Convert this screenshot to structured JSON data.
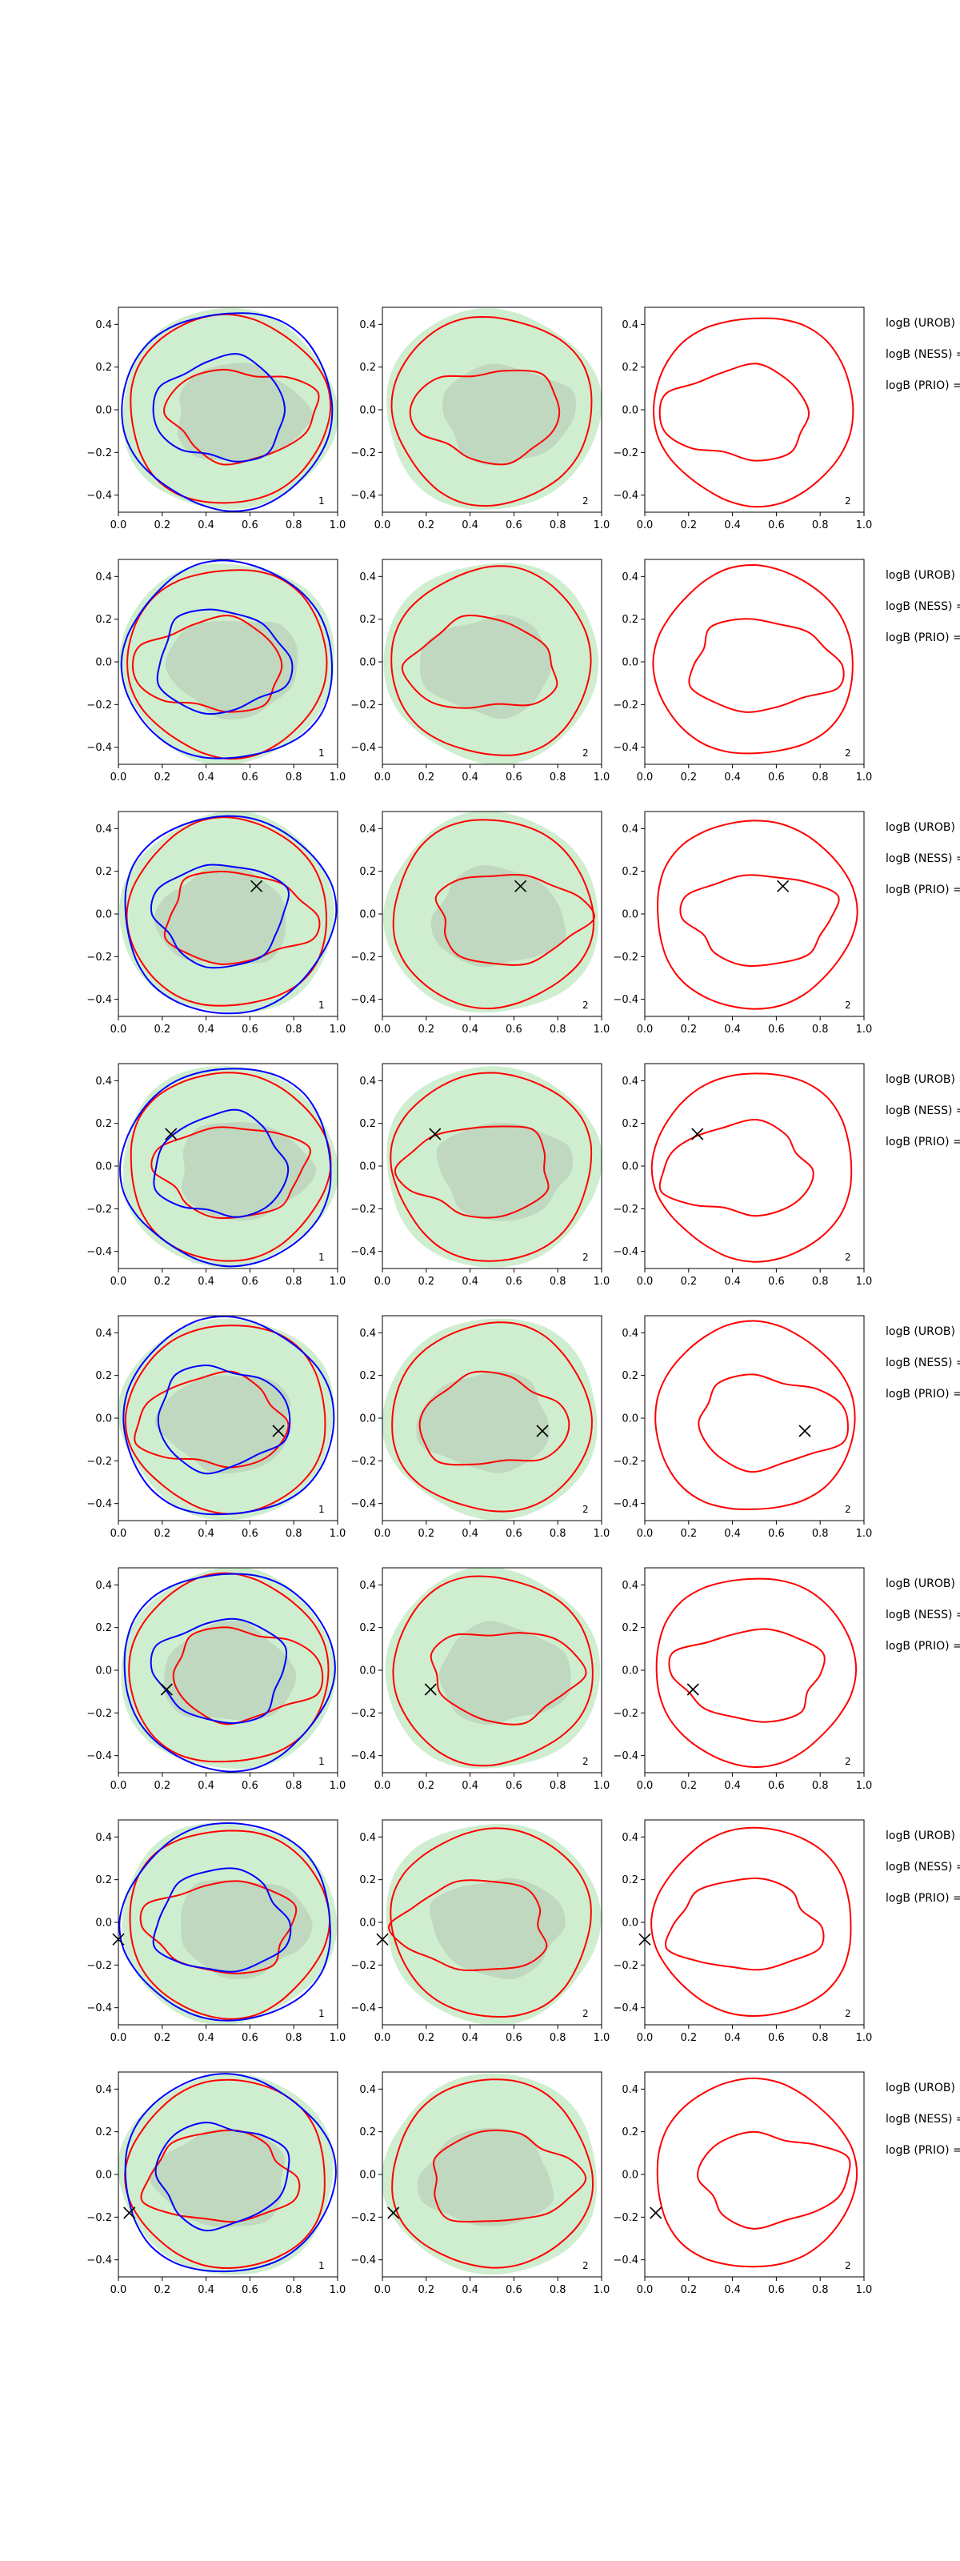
{
  "chart_data": {
    "type": "contour",
    "title": "",
    "xlabel": "",
    "ylabel": "",
    "xlim": [
      0.0,
      1.0
    ],
    "ylim": [
      -0.48,
      0.48
    ],
    "x_ticks": [
      "0.0",
      "0.2",
      "0.4",
      "0.6",
      "0.8",
      "1.0"
    ],
    "y_ticks": [
      "0.4",
      "0.2",
      "0.0",
      "−0.2",
      "−0.4"
    ],
    "y_tick_values": [
      0.4,
      0.2,
      0.0,
      -0.2,
      -0.4
    ],
    "x_tick_values": [
      0.0,
      0.2,
      0.4,
      0.6,
      0.8,
      1.0
    ],
    "panel_labels": [
      "1",
      "2",
      "2"
    ],
    "logb_labels": [
      "logB (UROB) =",
      "logB (NESS) =",
      "logB (PRIO) ="
    ],
    "colors": {
      "outer_fill": "#cfeecf",
      "inner_fill": "#bfd8bf",
      "red": "#ff0000",
      "blue": "#0000ff",
      "marker": "#000000"
    },
    "rows": [
      {
        "marker": null
      },
      {
        "marker": null
      },
      {
        "marker": [
          0.63,
          0.13
        ]
      },
      {
        "marker": [
          0.24,
          0.15
        ]
      },
      {
        "marker": [
          0.73,
          -0.06
        ]
      },
      {
        "marker": [
          0.22,
          -0.09
        ]
      },
      {
        "marker": [
          0.0,
          -0.08
        ]
      },
      {
        "marker": [
          0.05,
          -0.18
        ]
      }
    ]
  }
}
